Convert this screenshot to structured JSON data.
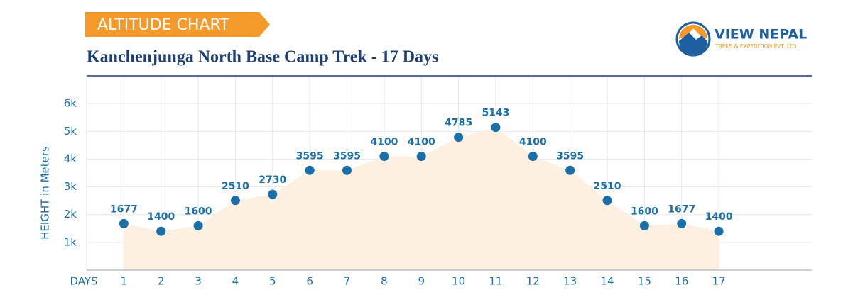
{
  "logo": {
    "name": "VIEW NEPAL",
    "tagline": "TREKS & EXPEDITION PVT. LTD."
  },
  "chart_data": {
    "type": "line",
    "badge": "ALTITUDE CHART",
    "title": "Kanchenjunga North Base Camp Trek - 17 Days",
    "y_label": "HEIGHT in Meters",
    "x_label": "DAYS",
    "x": [
      1,
      2,
      3,
      4,
      5,
      6,
      7,
      8,
      9,
      10,
      11,
      12,
      13,
      14,
      15,
      16,
      17
    ],
    "values": [
      1677,
      1400,
      1600,
      2510,
      2730,
      3595,
      3595,
      4100,
      4100,
      4785,
      5143,
      4100,
      3595,
      2510,
      1600,
      1677,
      1400
    ],
    "color": "#1a6fa8",
    "area_color": "#fdf0e1",
    "xlim": [
      0,
      19.5
    ],
    "xticks": [
      1,
      2,
      3,
      4,
      5,
      6,
      7,
      8,
      9,
      10,
      11,
      12,
      13,
      14,
      15,
      16,
      17
    ],
    "ylim": [
      0,
      7000
    ],
    "yticks": [
      {
        "value": 1000,
        "label": "1k"
      },
      {
        "value": 2000,
        "label": "2k"
      },
      {
        "value": 3000,
        "label": "3k"
      },
      {
        "value": 4000,
        "label": "4k"
      },
      {
        "value": 5000,
        "label": "5k"
      },
      {
        "value": 6000,
        "label": "6k"
      }
    ],
    "grid": true
  }
}
